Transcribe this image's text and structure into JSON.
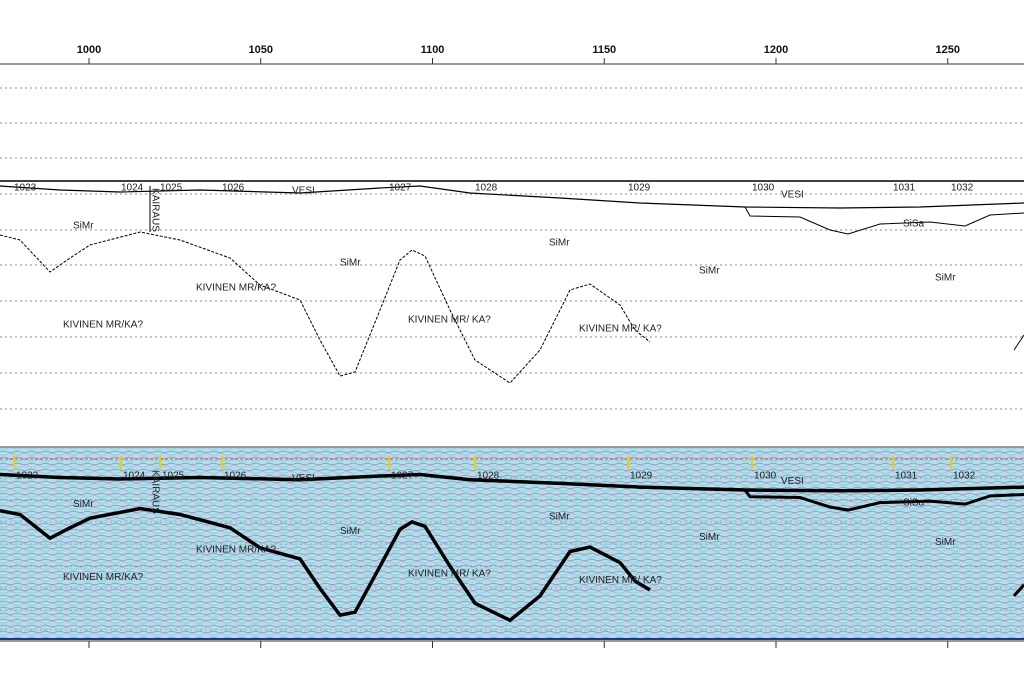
{
  "axis": {
    "ticks": [
      1000,
      1050,
      1100,
      1150,
      1200,
      1250
    ]
  },
  "fixpoints": [
    "1023",
    "1024",
    "1025",
    "1026",
    "1027",
    "1028",
    "1029",
    "1030",
    "1031",
    "1032"
  ],
  "kairaus": "KAIRAUS",
  "labels": [
    "VESI",
    "VESI",
    "SiMr",
    "SiMr",
    "SiMr",
    "SiMr",
    "SiSa",
    "SiMr",
    "KIVINEN MR/KA?",
    "KIVINEN MR/KA?",
    "KIVINEN MR/ KA?",
    "KIVINEN MR/ KA?"
  ]
}
